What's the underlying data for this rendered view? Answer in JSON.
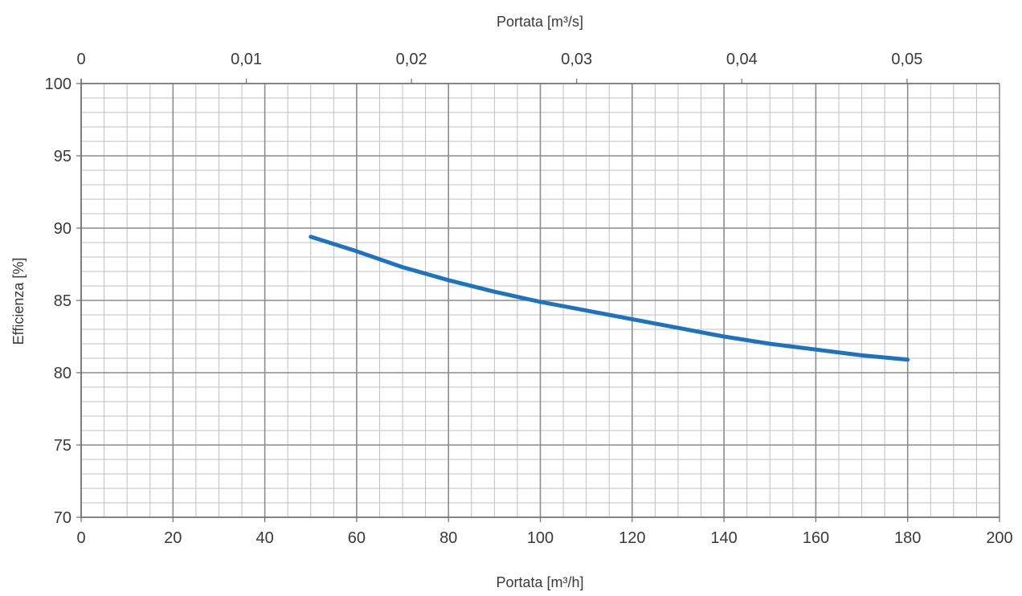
{
  "chart_data": {
    "type": "line",
    "x_label": "Portata [m³/h]",
    "x2_label": "Portata [m³/s]",
    "y_label": "Efficienza [%]",
    "xlim": [
      0,
      200
    ],
    "x2lim": [
      0,
      0.0556
    ],
    "ylim": [
      70,
      100
    ],
    "grid": true,
    "x_ticks": [
      "0",
      "20",
      "40",
      "60",
      "80",
      "100",
      "120",
      "140",
      "160",
      "180",
      "200"
    ],
    "x2_ticks": [
      {
        "value": 0,
        "label": "0"
      },
      {
        "value": 0.01,
        "label": "0,01"
      },
      {
        "value": 0.02,
        "label": "0,02"
      },
      {
        "value": 0.03,
        "label": "0,03"
      },
      {
        "value": 0.04,
        "label": "0,04"
      },
      {
        "value": 0.05,
        "label": "0,05"
      }
    ],
    "y_ticks": [
      "70",
      "75",
      "80",
      "85",
      "90",
      "95",
      "100"
    ],
    "series": [
      {
        "color": "#1e73be",
        "x": [
          50,
          60,
          70,
          80,
          90,
          100,
          110,
          120,
          130,
          140,
          150,
          160,
          170,
          180
        ],
        "y": [
          89.4,
          88.4,
          87.3,
          86.4,
          85.6,
          84.9,
          84.3,
          83.7,
          83.1,
          82.5,
          82.0,
          81.6,
          81.2,
          80.9
        ]
      }
    ]
  }
}
